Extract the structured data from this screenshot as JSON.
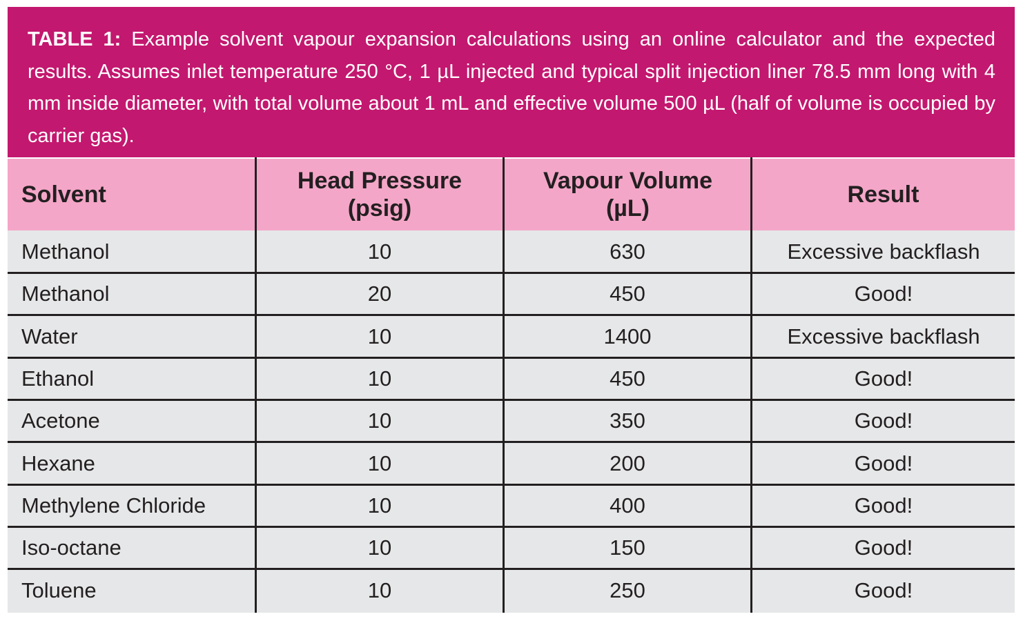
{
  "table": {
    "caption_label": "TABLE 1:",
    "caption_text": " Example solvent vapour expansion calculations using an online calculator and the expected results. Assumes inlet temperature 250 °C, 1 µL injected and typical split injection liner 78.5 mm long with 4 mm inside diameter, with total volume about 1 mL and effective volume 500 µL (half of volume is occupied by carrier gas).",
    "columns": [
      {
        "line1": "Solvent",
        "line2": ""
      },
      {
        "line1": "Head Pressure",
        "line2": "(psig)"
      },
      {
        "line1": "Vapour Volume",
        "line2": "(µL)"
      },
      {
        "line1": "Result",
        "line2": ""
      }
    ],
    "rows": [
      [
        "Methanol",
        "10",
        "630",
        "Excessive backflash"
      ],
      [
        "Methanol",
        "20",
        "450",
        "Good!"
      ],
      [
        "Water",
        "10",
        "1400",
        "Excessive backflash"
      ],
      [
        "Ethanol",
        "10",
        "450",
        "Good!"
      ],
      [
        "Acetone",
        "10",
        "350",
        "Good!"
      ],
      [
        "Hexane",
        "10",
        "200",
        "Good!"
      ],
      [
        "Methylene Chloride",
        "10",
        "400",
        "Good!"
      ],
      [
        "Iso-octane",
        "10",
        "150",
        "Good!"
      ],
      [
        "Toluene",
        "10",
        "250",
        "Good!"
      ]
    ],
    "colors": {
      "caption_bg": "#c3186f",
      "header_bg": "#f4a6c8",
      "body_bg": "#e6e7e8",
      "text": "#231f20"
    }
  }
}
